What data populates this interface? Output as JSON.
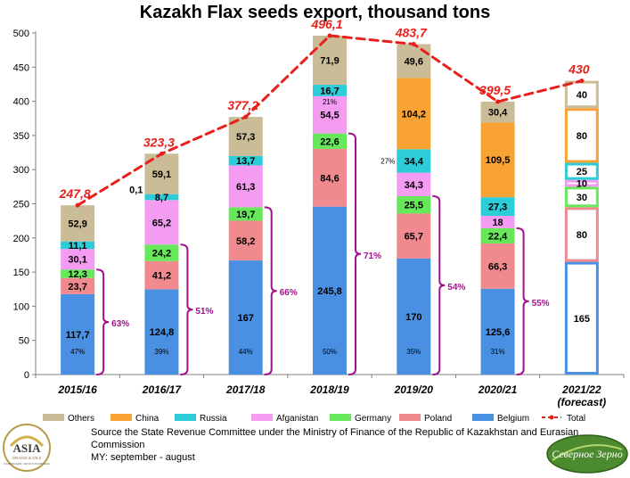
{
  "chart_data": {
    "type": "bar",
    "stacked": true,
    "title": "Kazakh Flax seeds export, thousand tons",
    "ylim": [
      0,
      500
    ],
    "yticks": [
      0,
      50,
      100,
      150,
      200,
      250,
      300,
      350,
      400,
      450,
      500
    ],
    "grid": false,
    "legend_position": "bottom",
    "categories": [
      "2015/16",
      "2016/17",
      "2017/18",
      "2018/19",
      "2019/20",
      "2020/21",
      "2021/22"
    ],
    "category_sublabels": [
      "",
      "",
      "",
      "",
      "",
      "",
      "(forecast)"
    ],
    "forecast_index": 6,
    "series": [
      {
        "name": "Belgium",
        "color": "#4A90E2",
        "values": [
          117.7,
          124.8,
          167,
          245.8,
          170,
          125.6,
          165
        ],
        "labels": [
          "117,7",
          "124,8",
          "167",
          "245,8",
          "170",
          "125,6",
          "165"
        ]
      },
      {
        "name": "Poland",
        "color": "#F08A8E",
        "values": [
          23.7,
          41.2,
          58.2,
          84.6,
          65.7,
          66.3,
          80
        ],
        "labels": [
          "23,7",
          "41,2",
          "58,2",
          "84,6",
          "65,7",
          "66,3",
          "80"
        ]
      },
      {
        "name": "Germany",
        "color": "#66E85A",
        "values": [
          12.3,
          24.2,
          19.7,
          22.6,
          25.5,
          22.4,
          30
        ],
        "labels": [
          "12,3",
          "24,2",
          "19,7",
          "22,6",
          "25,5",
          "22,4",
          "30"
        ]
      },
      {
        "name": "Afganistan",
        "color": "#F49BF2",
        "values": [
          30.1,
          65.2,
          61.3,
          54.5,
          34.3,
          18,
          10
        ],
        "labels": [
          "30,1",
          "65,2",
          "61,3",
          "54,5",
          "34,3",
          "18",
          "10"
        ]
      },
      {
        "name": "Russia",
        "color": "#2CCCD9",
        "values": [
          11.1,
          8.7,
          13.7,
          16.7,
          34.4,
          27.3,
          25
        ],
        "labels": [
          "11,1",
          "8,7",
          "13,7",
          "16,7",
          "34,4",
          "27,3",
          "25"
        ]
      },
      {
        "name": "China",
        "color": "#F8A233",
        "values": [
          0,
          0.1,
          0,
          0,
          104.2,
          109.5,
          80
        ],
        "labels": [
          "",
          "0,1",
          "",
          "",
          "104,2",
          "109,5",
          "80"
        ]
      },
      {
        "name": "Others",
        "color": "#C9BC97",
        "values": [
          52.9,
          59.1,
          57.3,
          71.9,
          49.6,
          30.4,
          40
        ],
        "labels": [
          "52,9",
          "59,1",
          "57,3",
          "71,9",
          "49,6",
          "30,4",
          "40"
        ]
      }
    ],
    "total": {
      "name": "Total",
      "color": "#E8201C",
      "values": [
        247.8,
        323.3,
        377.2,
        496.1,
        483.7,
        399.5,
        430
      ],
      "labels": [
        "247,8",
        "323,3",
        "377,2",
        "496,1",
        "483,7",
        "399,5",
        "430"
      ]
    },
    "belgium_share_labels": [
      "47%",
      "39%",
      "44%",
      "50%",
      "35%",
      "31%",
      ""
    ],
    "eu_share_labels": [
      "63%",
      "51%",
      "66%",
      "71%",
      "54%",
      "55%",
      ""
    ],
    "extra_share_labels": [
      {
        "category": 3,
        "series": "Afganistan",
        "text": "21%"
      },
      {
        "category": 4,
        "series": "Russia",
        "text": "27%"
      }
    ]
  },
  "source_text": "Source the State Revenue Committee under the Ministry of Finance of the Republic of Kazakhstan and Eurasian Commission",
  "period_text": "MY: september - august",
  "logo_left": {
    "main": "ASIA",
    "sub": "GRAINS & OILS",
    "small": "КОНФЕРЕНЦИЯ · ЗЕРНО И МАСЛИЧНЫЕ"
  },
  "logo_right": {
    "text": "Северное Зерно"
  }
}
